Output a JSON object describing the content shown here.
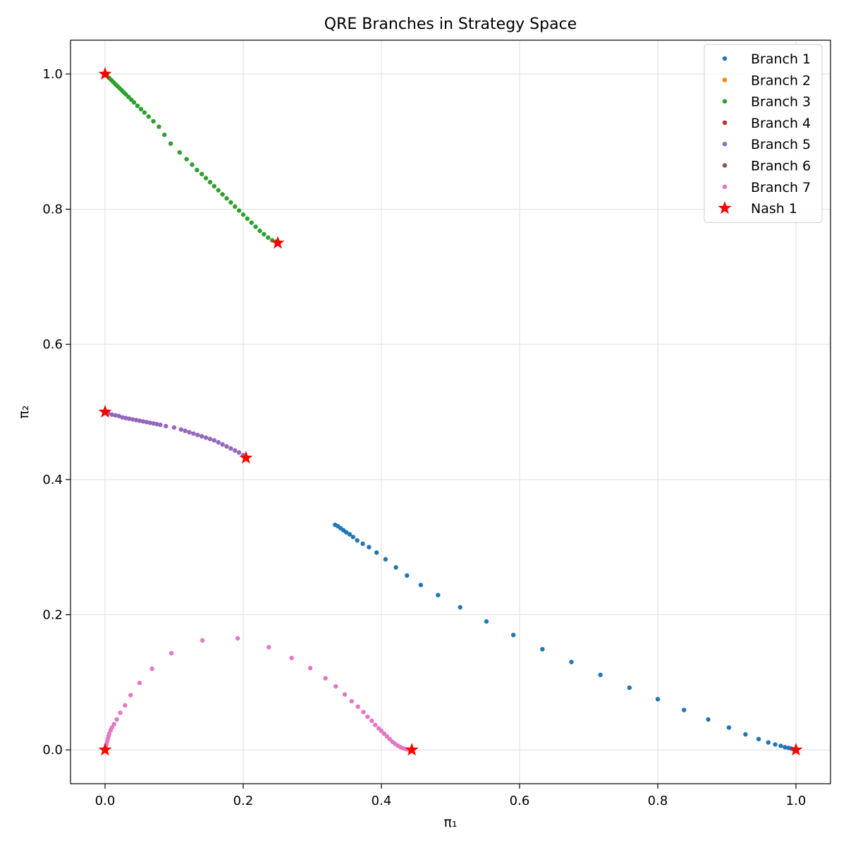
{
  "chart_data": {
    "type": "scatter",
    "title": "QRE Branches in Strategy Space",
    "xlabel": "π₁",
    "ylabel": "π₂",
    "xlim": [
      -0.05,
      1.05
    ],
    "ylim": [
      -0.05,
      1.05
    ],
    "xticks": [
      0.0,
      0.2,
      0.4,
      0.6,
      0.8,
      1.0
    ],
    "yticks": [
      0.0,
      0.2,
      0.4,
      0.6,
      0.8,
      1.0
    ],
    "xtick_labels": [
      "0.0",
      "0.2",
      "0.4",
      "0.6",
      "0.8",
      "1.0"
    ],
    "ytick_labels": [
      "0.0",
      "0.2",
      "0.4",
      "0.6",
      "0.8",
      "1.0"
    ],
    "grid": true,
    "legend_position": "top-right",
    "series": [
      {
        "name": "Branch 1",
        "color": "#1f77b4",
        "points": [
          [
            0.333,
            0.333
          ],
          [
            0.337,
            0.331
          ],
          [
            0.341,
            0.328
          ],
          [
            0.345,
            0.325
          ],
          [
            0.349,
            0.322
          ],
          [
            0.354,
            0.319
          ],
          [
            0.359,
            0.315
          ],
          [
            0.365,
            0.31
          ],
          [
            0.373,
            0.305
          ],
          [
            0.382,
            0.3
          ],
          [
            0.393,
            0.292
          ],
          [
            0.406,
            0.282
          ],
          [
            0.421,
            0.27
          ],
          [
            0.437,
            0.258
          ],
          [
            0.457,
            0.244
          ],
          [
            0.482,
            0.229
          ],
          [
            0.514,
            0.211
          ],
          [
            0.552,
            0.19
          ],
          [
            0.591,
            0.17
          ],
          [
            0.633,
            0.149
          ],
          [
            0.675,
            0.13
          ],
          [
            0.717,
            0.111
          ],
          [
            0.759,
            0.092
          ],
          [
            0.8,
            0.075
          ],
          [
            0.838,
            0.059
          ],
          [
            0.873,
            0.045
          ],
          [
            0.903,
            0.033
          ],
          [
            0.927,
            0.023
          ],
          [
            0.946,
            0.016
          ],
          [
            0.96,
            0.011
          ],
          [
            0.97,
            0.008
          ],
          [
            0.978,
            0.006
          ],
          [
            0.984,
            0.004
          ],
          [
            0.989,
            0.003
          ],
          [
            0.993,
            0.002
          ],
          [
            0.996,
            0.001
          ],
          [
            0.999,
            0.0
          ]
        ]
      },
      {
        "name": "Branch 2",
        "color": "#ff7f0e",
        "points": []
      },
      {
        "name": "Branch 3",
        "color": "#2ca02c",
        "points": [
          [
            0.0,
            1.0
          ],
          [
            0.003,
            0.997
          ],
          [
            0.006,
            0.994
          ],
          [
            0.009,
            0.991
          ],
          [
            0.012,
            0.988
          ],
          [
            0.015,
            0.985
          ],
          [
            0.018,
            0.982
          ],
          [
            0.021,
            0.979
          ],
          [
            0.024,
            0.976
          ],
          [
            0.027,
            0.973
          ],
          [
            0.03,
            0.97
          ],
          [
            0.034,
            0.966
          ],
          [
            0.038,
            0.962
          ],
          [
            0.042,
            0.958
          ],
          [
            0.047,
            0.953
          ],
          [
            0.052,
            0.948
          ],
          [
            0.057,
            0.943
          ],
          [
            0.063,
            0.937
          ],
          [
            0.07,
            0.93
          ],
          [
            0.078,
            0.922
          ],
          [
            0.086,
            0.91
          ],
          [
            0.095,
            0.897
          ],
          [
            0.108,
            0.884
          ],
          [
            0.118,
            0.874
          ],
          [
            0.126,
            0.866
          ],
          [
            0.133,
            0.858
          ],
          [
            0.14,
            0.852
          ],
          [
            0.146,
            0.846
          ],
          [
            0.152,
            0.84
          ],
          [
            0.158,
            0.834
          ],
          [
            0.164,
            0.828
          ],
          [
            0.17,
            0.822
          ],
          [
            0.176,
            0.816
          ],
          [
            0.182,
            0.81
          ],
          [
            0.188,
            0.804
          ],
          [
            0.194,
            0.798
          ],
          [
            0.2,
            0.792
          ],
          [
            0.206,
            0.786
          ],
          [
            0.212,
            0.78
          ],
          [
            0.218,
            0.774
          ],
          [
            0.224,
            0.768
          ],
          [
            0.23,
            0.763
          ],
          [
            0.236,
            0.758
          ],
          [
            0.242,
            0.754
          ],
          [
            0.248,
            0.752
          ]
        ]
      },
      {
        "name": "Branch 4",
        "color": "#d62728",
        "points": []
      },
      {
        "name": "Branch 5",
        "color": "#9467bd",
        "points": [
          [
            0.0,
            0.5
          ],
          [
            0.005,
            0.498
          ],
          [
            0.01,
            0.496
          ],
          [
            0.015,
            0.495
          ],
          [
            0.02,
            0.494
          ],
          [
            0.025,
            0.492
          ],
          [
            0.03,
            0.491
          ],
          [
            0.035,
            0.49
          ],
          [
            0.04,
            0.489
          ],
          [
            0.045,
            0.488
          ],
          [
            0.05,
            0.487
          ],
          [
            0.055,
            0.486
          ],
          [
            0.06,
            0.485
          ],
          [
            0.065,
            0.484
          ],
          [
            0.07,
            0.483
          ],
          [
            0.075,
            0.482
          ],
          [
            0.08,
            0.481
          ],
          [
            0.088,
            0.479
          ],
          [
            0.1,
            0.477
          ],
          [
            0.11,
            0.474
          ],
          [
            0.116,
            0.472
          ],
          [
            0.122,
            0.47
          ],
          [
            0.128,
            0.468
          ],
          [
            0.134,
            0.466
          ],
          [
            0.14,
            0.464
          ],
          [
            0.146,
            0.462
          ],
          [
            0.152,
            0.46
          ],
          [
            0.158,
            0.458
          ],
          [
            0.164,
            0.455
          ],
          [
            0.17,
            0.452
          ],
          [
            0.176,
            0.449
          ],
          [
            0.182,
            0.446
          ],
          [
            0.188,
            0.443
          ],
          [
            0.194,
            0.44
          ],
          [
            0.2,
            0.436
          ],
          [
            0.204,
            0.433
          ]
        ]
      },
      {
        "name": "Branch 6",
        "color": "#8c564b",
        "points": []
      },
      {
        "name": "Branch 7",
        "color": "#e377c2",
        "points": [
          [
            0.0,
            0.0
          ],
          [
            0.001,
            0.004
          ],
          [
            0.002,
            0.008
          ],
          [
            0.003,
            0.012
          ],
          [
            0.004,
            0.016
          ],
          [
            0.005,
            0.02
          ],
          [
            0.006,
            0.024
          ],
          [
            0.008,
            0.029
          ],
          [
            0.01,
            0.033
          ],
          [
            0.013,
            0.038
          ],
          [
            0.017,
            0.045
          ],
          [
            0.022,
            0.055
          ],
          [
            0.029,
            0.066
          ],
          [
            0.037,
            0.081
          ],
          [
            0.05,
            0.099
          ],
          [
            0.068,
            0.12
          ],
          [
            0.096,
            0.143
          ],
          [
            0.141,
            0.162
          ],
          [
            0.192,
            0.165
          ],
          [
            0.237,
            0.152
          ],
          [
            0.27,
            0.136
          ],
          [
            0.297,
            0.121
          ],
          [
            0.319,
            0.106
          ],
          [
            0.334,
            0.094
          ],
          [
            0.347,
            0.082
          ],
          [
            0.357,
            0.072
          ],
          [
            0.366,
            0.064
          ],
          [
            0.374,
            0.056
          ],
          [
            0.38,
            0.049
          ],
          [
            0.386,
            0.043
          ],
          [
            0.391,
            0.037
          ],
          [
            0.396,
            0.032
          ],
          [
            0.4,
            0.028
          ],
          [
            0.404,
            0.024
          ],
          [
            0.408,
            0.02
          ],
          [
            0.412,
            0.016
          ],
          [
            0.416,
            0.012
          ],
          [
            0.42,
            0.009
          ],
          [
            0.424,
            0.006
          ],
          [
            0.428,
            0.004
          ],
          [
            0.432,
            0.002
          ],
          [
            0.436,
            0.001
          ],
          [
            0.44,
            0.0
          ]
        ]
      }
    ],
    "nash": {
      "name": "Nash 1",
      "color": "#ff0000",
      "points": [
        [
          0.0,
          1.0
        ],
        [
          0.25,
          0.75
        ],
        [
          0.0,
          0.5
        ],
        [
          0.204,
          0.432
        ],
        [
          0.0,
          0.0
        ],
        [
          0.444,
          0.0
        ],
        [
          1.0,
          0.0
        ]
      ]
    }
  }
}
